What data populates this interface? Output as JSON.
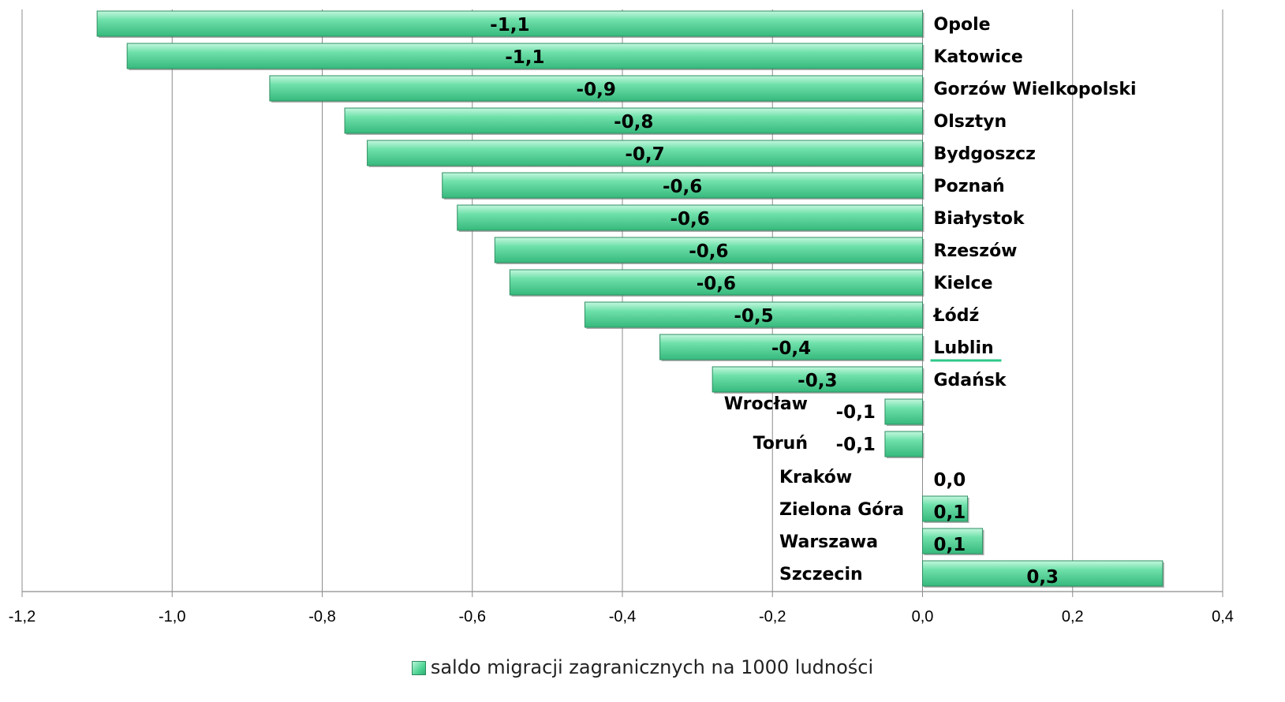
{
  "chart_data": {
    "type": "bar",
    "orientation": "horizontal",
    "categories": [
      "Opole",
      "Katowice",
      "Gorzów Wielkopolski",
      "Olsztyn",
      "Bydgoszcz",
      "Poznań",
      "Białystok",
      "Rzeszów",
      "Kielce",
      "Łódź",
      "Lublin",
      "Gdańsk",
      "Wrocław",
      "Toruń",
      "Kraków",
      "Zielona Góra",
      "Warszawa",
      "Szczecin"
    ],
    "series": [
      {
        "name": "saldo migracji zagranicznych na 1000 ludności",
        "values": [
          -1.1,
          -1.06,
          -0.87,
          -0.77,
          -0.74,
          -0.64,
          -0.62,
          -0.57,
          -0.55,
          -0.45,
          -0.35,
          -0.28,
          -0.05,
          -0.05,
          0.0,
          0.06,
          0.08,
          0.32
        ],
        "labels": [
          "-1,1",
          "-1,1",
          "-0,9",
          "-0,8",
          "-0,7",
          "-0,6",
          "-0,6",
          "-0,6",
          "-0,6",
          "-0,5",
          "-0,4",
          "-0,3",
          "-0,1",
          "-0,1",
          "0,0",
          "0,1",
          "0,1",
          "0,3"
        ]
      }
    ],
    "xlim": [
      -1.2,
      0.4
    ],
    "xticks": [
      -1.2,
      -1.0,
      -0.8,
      -0.6,
      -0.4,
      -0.2,
      0.0,
      0.2,
      0.4
    ],
    "xtick_labels": [
      "-1,2",
      "-1,0",
      "-0,8",
      "-0,6",
      "-0,4",
      "-0,2",
      "0,0",
      "0,2",
      "0,4"
    ],
    "grid": true,
    "legend": "bottom",
    "bar_color": "#4fd494",
    "highlight_category": "Lublin",
    "highlight_color": "#2fc98a"
  }
}
